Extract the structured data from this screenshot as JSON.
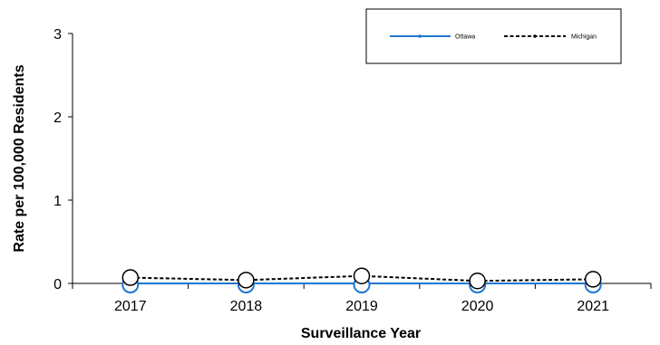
{
  "chart_data": {
    "type": "line",
    "xlabel": "Surveillance Year",
    "ylabel": "Rate per 100,000 Residents",
    "categories": [
      "2017",
      "2018",
      "2019",
      "2020",
      "2021"
    ],
    "ylim": [
      0,
      3
    ],
    "yticks": [
      0,
      1,
      2,
      3
    ],
    "grid": false,
    "legend_position": "top-right",
    "series": [
      {
        "name": "Ottawa",
        "values": [
          0,
          0,
          0,
          0,
          0
        ],
        "color": "#1f77d0",
        "line_style": "solid"
      },
      {
        "name": "Michigan",
        "values": [
          0.07,
          0.04,
          0.09,
          0.03,
          0.05
        ],
        "color": "#000000",
        "line_style": "dashed"
      }
    ]
  }
}
